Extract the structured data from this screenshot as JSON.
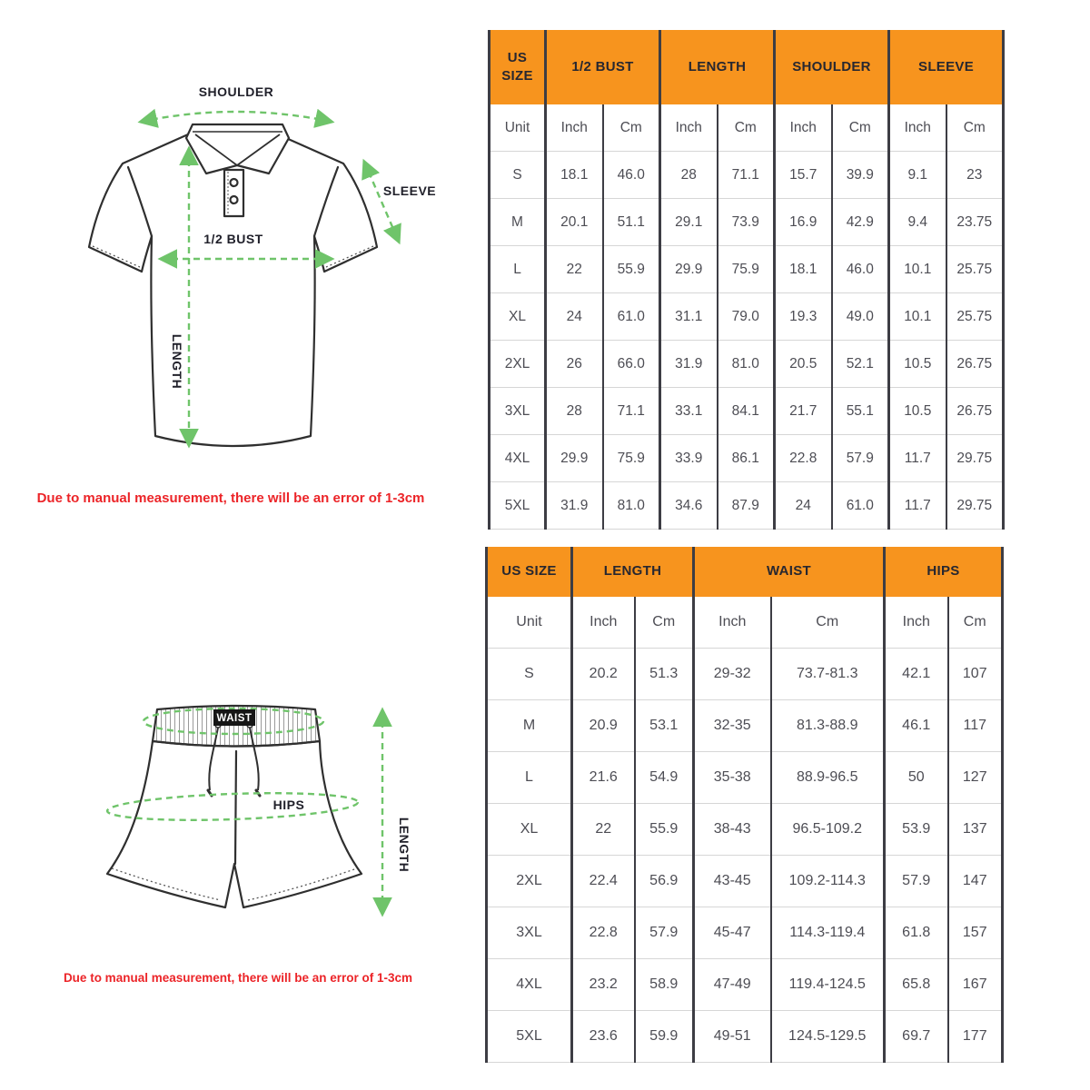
{
  "colors": {
    "header_bg": "#F7941E",
    "header_text": "#272730",
    "cell_text": "#4D4D54",
    "grid_dark": "#3D3D44",
    "grid_light": "#D6D6D6",
    "note_red": "#EC2428",
    "arrow_green": "#6FC46A",
    "garment_line": "#2F2F2F"
  },
  "shirt_diagram": {
    "labels": {
      "shoulder": "SHOULDER",
      "sleeve": "SLEEVE",
      "half_bust": "1/2  BUST",
      "length": "LENGTH"
    },
    "note": "Due to manual measurement, there will be an error of 1-3cm"
  },
  "shorts_diagram": {
    "labels": {
      "waist": "WAIST",
      "hips": "HIPS",
      "length": "LENGTH"
    },
    "note": "Due to manual measurement, there will be an error of 1-3cm"
  },
  "shirt_table": {
    "groups": [
      {
        "label": "US SIZE",
        "span": 1
      },
      {
        "label": "1/2 BUST",
        "span": 2
      },
      {
        "label": "LENGTH",
        "span": 2
      },
      {
        "label": "SHOULDER",
        "span": 2
      },
      {
        "label": "SLEEVE",
        "span": 2
      }
    ],
    "unit_row": [
      "Unit",
      "Inch",
      "Cm",
      "Inch",
      "Cm",
      "Inch",
      "Cm",
      "Inch",
      "Cm"
    ],
    "rows": [
      [
        "S",
        "18.1",
        "46.0",
        "28",
        "71.1",
        "15.7",
        "39.9",
        "9.1",
        "23"
      ],
      [
        "M",
        "20.1",
        "51.1",
        "29.1",
        "73.9",
        "16.9",
        "42.9",
        "9.4",
        "23.75"
      ],
      [
        "L",
        "22",
        "55.9",
        "29.9",
        "75.9",
        "18.1",
        "46.0",
        "10.1",
        "25.75"
      ],
      [
        "XL",
        "24",
        "61.0",
        "31.1",
        "79.0",
        "19.3",
        "49.0",
        "10.1",
        "25.75"
      ],
      [
        "2XL",
        "26",
        "66.0",
        "31.9",
        "81.0",
        "20.5",
        "52.1",
        "10.5",
        "26.75"
      ],
      [
        "3XL",
        "28",
        "71.1",
        "33.1",
        "84.1",
        "21.7",
        "55.1",
        "10.5",
        "26.75"
      ],
      [
        "4XL",
        "29.9",
        "75.9",
        "33.9",
        "86.1",
        "22.8",
        "57.9",
        "11.7",
        "29.75"
      ],
      [
        "5XL",
        "31.9",
        "81.0",
        "34.6",
        "87.9",
        "24",
        "61.0",
        "11.7",
        "29.75"
      ]
    ]
  },
  "shorts_table": {
    "groups": [
      {
        "label": "US SIZE",
        "span": 1
      },
      {
        "label": "LENGTH",
        "span": 2
      },
      {
        "label": "WAIST",
        "span": 2
      },
      {
        "label": "HIPS",
        "span": 2
      }
    ],
    "unit_row": [
      "Unit",
      "Inch",
      "Cm",
      "Inch",
      "Cm",
      "Inch",
      "Cm"
    ],
    "rows": [
      [
        "S",
        "20.2",
        "51.3",
        "29-32",
        "73.7-81.3",
        "42.1",
        "107"
      ],
      [
        "M",
        "20.9",
        "53.1",
        "32-35",
        "81.3-88.9",
        "46.1",
        "117"
      ],
      [
        "L",
        "21.6",
        "54.9",
        "35-38",
        "88.9-96.5",
        "50",
        "127"
      ],
      [
        "XL",
        "22",
        "55.9",
        "38-43",
        "96.5-109.2",
        "53.9",
        "137"
      ],
      [
        "2XL",
        "22.4",
        "56.9",
        "43-45",
        "109.2-114.3",
        "57.9",
        "147"
      ],
      [
        "3XL",
        "22.8",
        "57.9",
        "45-47",
        "114.3-119.4",
        "61.8",
        "157"
      ],
      [
        "4XL",
        "23.2",
        "58.9",
        "47-49",
        "119.4-124.5",
        "65.8",
        "167"
      ],
      [
        "5XL",
        "23.6",
        "59.9",
        "49-51",
        "124.5-129.5",
        "69.7",
        "177"
      ]
    ]
  }
}
